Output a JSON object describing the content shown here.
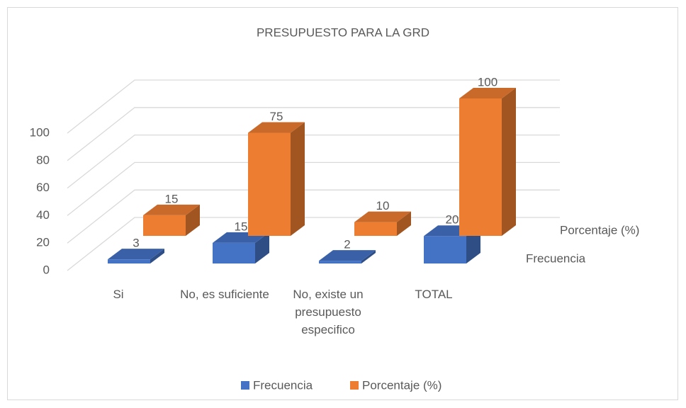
{
  "chart_data": {
    "type": "bar3d",
    "title": "PRESUPUESTO PARA LA GRD",
    "categories": [
      "Si",
      "No, es suficiente",
      "No, existe un presupuesto especifico",
      "TOTAL"
    ],
    "series": [
      {
        "name": "Frecuencia",
        "color": "#4472c4",
        "values": [
          3,
          15,
          2,
          20
        ]
      },
      {
        "name": "Porcentaje (%)",
        "color": "#ed7d31",
        "values": [
          15,
          75,
          10,
          100
        ]
      }
    ],
    "ylim": [
      0,
      100
    ],
    "yticks": [
      0,
      20,
      40,
      60,
      80,
      100
    ],
    "grid": true,
    "legend": "bottom"
  }
}
